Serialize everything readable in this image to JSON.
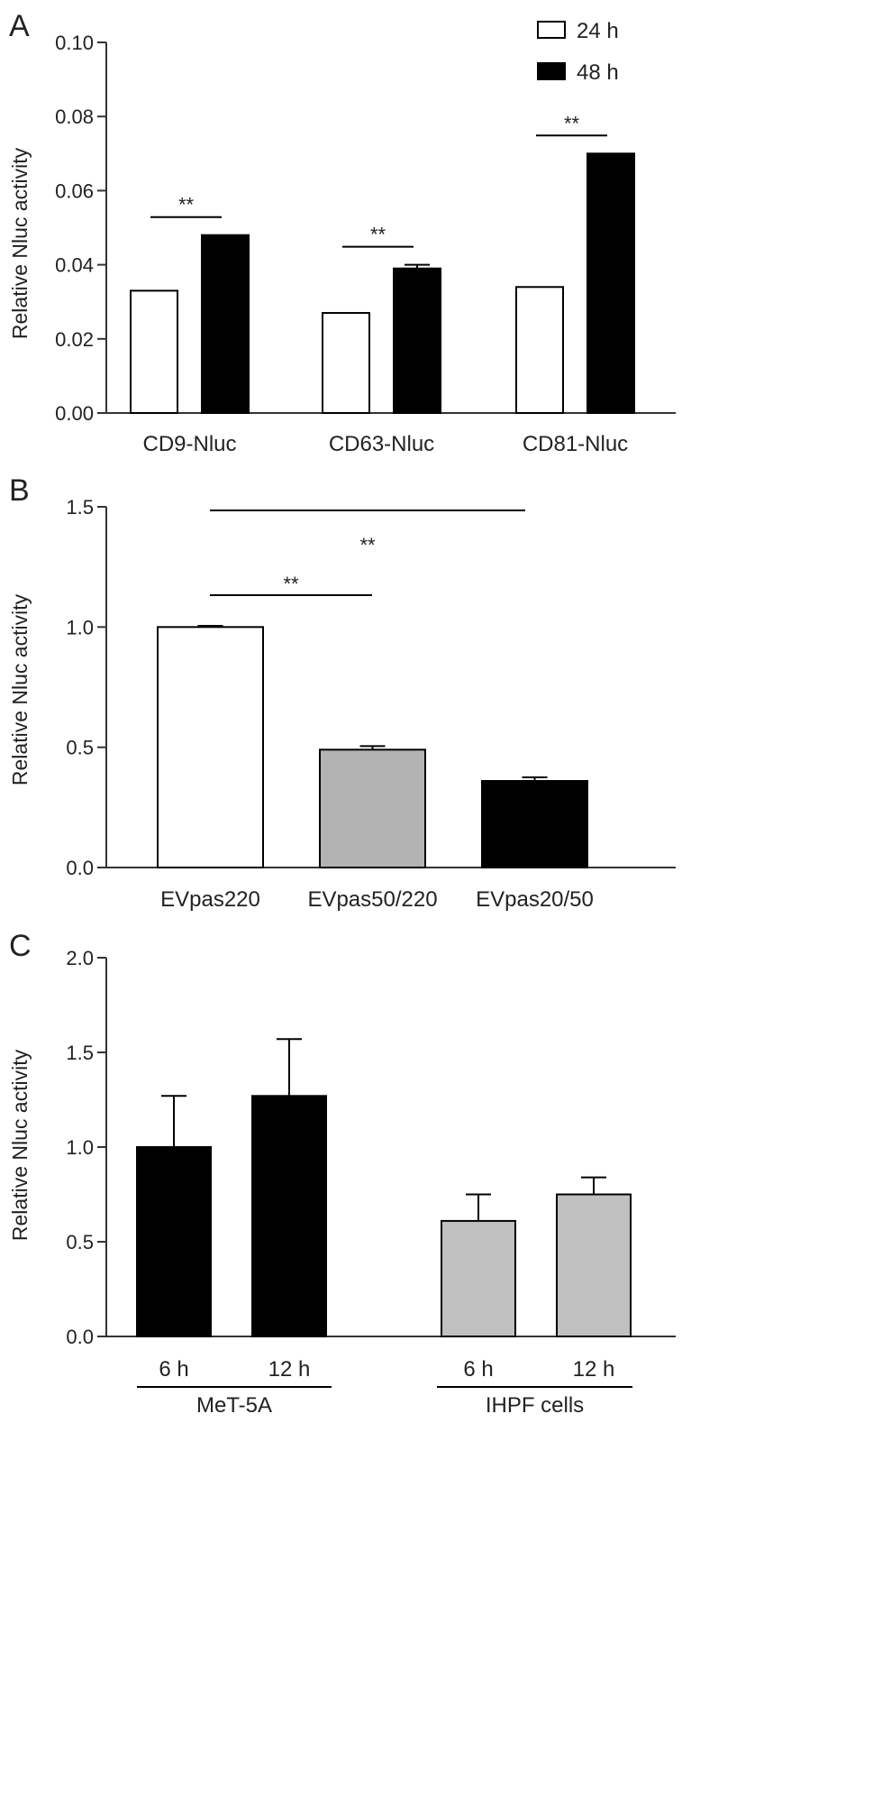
{
  "chart_data": [
    {
      "panel": "A",
      "type": "bar",
      "ylabel": "Relative Nluc activity",
      "ylim": [
        0,
        0.1
      ],
      "yticks": [
        "0.00",
        "0.02",
        "0.04",
        "0.06",
        "0.08",
        "0.10"
      ],
      "categories": [
        "CD9-Nluc",
        "CD63-Nluc",
        "CD81-Nluc"
      ],
      "series": [
        {
          "name": "24 h",
          "color": "#ffffff",
          "values": [
            0.033,
            0.027,
            0.034
          ],
          "errors": [
            0,
            0,
            0
          ]
        },
        {
          "name": "48 h",
          "color": "#000000",
          "values": [
            0.048,
            0.039,
            0.07
          ],
          "errors": [
            0,
            0.001,
            0
          ]
        }
      ],
      "legend_position": "top-right",
      "significance": [
        {
          "label": "**",
          "category": 0
        },
        {
          "label": "**",
          "category": 1
        },
        {
          "label": "**",
          "category": 2
        }
      ]
    },
    {
      "panel": "B",
      "type": "bar",
      "ylabel": "Relative Nluc activity",
      "ylim": [
        0,
        1.5
      ],
      "yticks": [
        "0.0",
        "0.5",
        "1.0",
        "1.5"
      ],
      "categories": [
        "EVpas220",
        "EVpas50/220",
        "EVpas20/50"
      ],
      "values": [
        1.0,
        0.49,
        0.36
      ],
      "errors": [
        0.005,
        0.015,
        0.015
      ],
      "colors": [
        "#ffffff",
        "#b3b3b3",
        "#000000"
      ],
      "significance": [
        {
          "label": "**",
          "from": 0,
          "to": 1
        },
        {
          "label": "**",
          "from": 0,
          "to": 2
        }
      ]
    },
    {
      "panel": "C",
      "type": "bar",
      "ylabel": "Relative Nluc activity",
      "ylim": [
        0,
        2.0
      ],
      "yticks": [
        "0.0",
        "0.5",
        "1.0",
        "1.5",
        "2.0"
      ],
      "categories": [
        "6 h",
        "12 h",
        "6 h",
        "12 h"
      ],
      "values": [
        1.0,
        1.27,
        0.61,
        0.75
      ],
      "errors": [
        0.27,
        0.3,
        0.14,
        0.09
      ],
      "colors": [
        "#000000",
        "#000000",
        "#c0c0c0",
        "#c0c0c0"
      ],
      "groups": [
        {
          "label": "MeT-5A",
          "members": [
            0,
            1
          ]
        },
        {
          "label": "IHPF cells",
          "members": [
            2,
            3
          ]
        }
      ]
    }
  ]
}
